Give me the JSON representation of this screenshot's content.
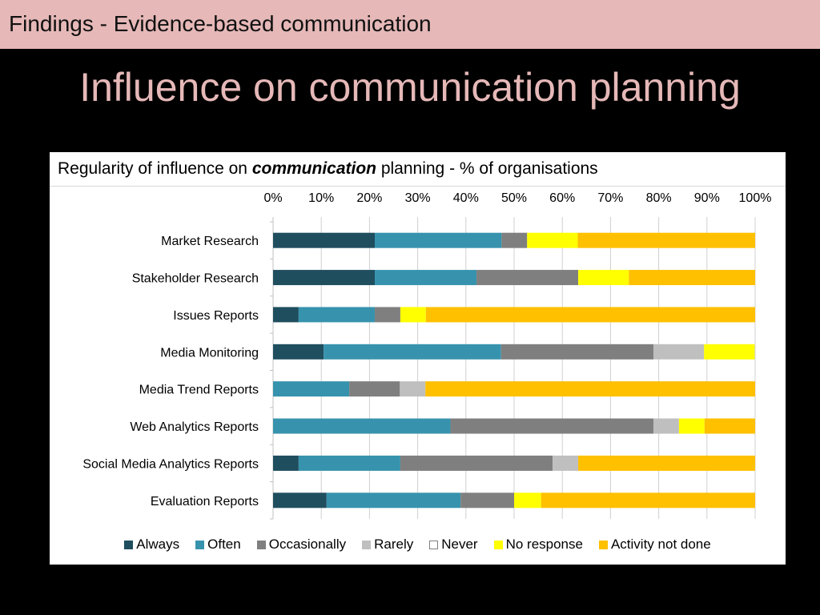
{
  "header": {
    "text": "Findings - Evidence-based communication"
  },
  "slide": {
    "title": "Influence on communication planning"
  },
  "chart": {
    "title_before": "Regularity of influence on ",
    "title_emph": "communication",
    "title_after": " planning - % of organisations"
  },
  "chart_data": {
    "type": "bar",
    "orientation": "horizontal",
    "stacked": true,
    "title": "Regularity of influence on communication planning - % of organisations",
    "xlim": [
      0,
      100
    ],
    "x_ticks": [
      "0%",
      "10%",
      "20%",
      "30%",
      "40%",
      "50%",
      "60%",
      "70%",
      "80%",
      "90%",
      "100%"
    ],
    "x_axis_position": "top",
    "grid": true,
    "legend_position": "bottom",
    "categories": [
      "Market Research",
      "Stakeholder Research",
      "Issues Reports",
      "Media Monitoring",
      "Media Trend Reports",
      "Web Analytics Reports",
      "Social Media Analytics Reports",
      "Evaluation Reports"
    ],
    "series": [
      {
        "name": "Always",
        "color": "#1f4e5f",
        "values": [
          21.1,
          21.1,
          5.3,
          10.5,
          0,
          0,
          5.3,
          11.1
        ]
      },
      {
        "name": "Often",
        "color": "#3793ad",
        "values": [
          26.3,
          21.1,
          15.8,
          36.8,
          15.8,
          36.8,
          21.1,
          27.8
        ]
      },
      {
        "name": "Occasionally",
        "color": "#7f7f7f",
        "values": [
          5.3,
          21.1,
          5.3,
          31.6,
          10.5,
          42.1,
          31.6,
          11.1
        ]
      },
      {
        "name": "Rarely",
        "color": "#bfbfbf",
        "values": [
          0,
          0,
          0,
          10.5,
          5.3,
          5.3,
          5.3,
          0
        ]
      },
      {
        "name": "Never",
        "color": "#ffffff",
        "values": [
          0,
          0,
          0,
          0,
          0,
          0,
          0,
          0
        ]
      },
      {
        "name": "No response",
        "color": "#ffff00",
        "values": [
          10.5,
          10.5,
          5.3,
          10.5,
          0,
          5.3,
          0,
          5.6
        ]
      },
      {
        "name": "Activity not done",
        "color": "#ffc000",
        "values": [
          36.8,
          26.3,
          68.4,
          0,
          68.4,
          10.5,
          36.8,
          44.4
        ]
      }
    ]
  }
}
